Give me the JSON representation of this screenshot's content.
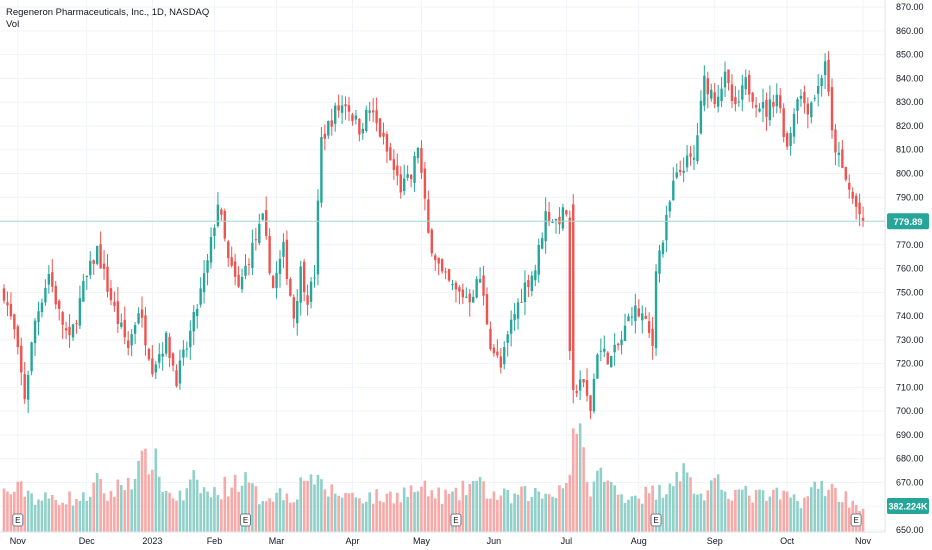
{
  "legend": {
    "title": "Regeneron Pharmaceuticals, Inc., 1D, NASDAQ",
    "volume_label": "Vol"
  },
  "colors": {
    "up": "#26a69a",
    "down": "#ef5350",
    "up_volume": "#91d0c9",
    "down_volume": "#f7a9a7",
    "grid": "#f0f3fa",
    "last_price": "#26a69a",
    "volume_tag": "#26a69a"
  },
  "chart_data": {
    "type": "candlestick",
    "symbol": "Regeneron Pharmaceuticals, Inc.",
    "interval": "1D",
    "exchange": "NASDAQ",
    "y_axis": {
      "ticks": [
        "870.00",
        "860.00",
        "850.00",
        "840.00",
        "830.00",
        "820.00",
        "810.00",
        "800.00",
        "790.00",
        "780.00",
        "770.00",
        "760.00",
        "750.00",
        "740.00",
        "730.00",
        "720.00",
        "710.00",
        "700.00",
        "690.00",
        "680.00",
        "670.00",
        "660.00",
        "650.00"
      ],
      "range": [
        650,
        873
      ]
    },
    "x_axis": {
      "labels": [
        "Nov",
        "Dec",
        "2023",
        "Feb",
        "Mar",
        "Apr",
        "May",
        "Jun",
        "Jul",
        "Aug",
        "Sep",
        "Oct",
        "Nov"
      ],
      "label_index": [
        4,
        24,
        43,
        61,
        79,
        101,
        121,
        142,
        163,
        184,
        206,
        227,
        249
      ]
    },
    "last_price": {
      "value": 779.89,
      "label": "779.89"
    },
    "last_volume": {
      "value": 382224,
      "label": "382.224K"
    },
    "earnings_markers": [
      4,
      70,
      131,
      189,
      247
    ],
    "anchors": [
      [
        0,
        750
      ],
      [
        3,
        733
      ],
      [
        6,
        706
      ],
      [
        9,
        738
      ],
      [
        13,
        758
      ],
      [
        16,
        741
      ],
      [
        19,
        729
      ],
      [
        23,
        752
      ],
      [
        27,
        768
      ],
      [
        30,
        752
      ],
      [
        33,
        738
      ],
      [
        36,
        727
      ],
      [
        39,
        743
      ],
      [
        43,
        719
      ],
      [
        47,
        730
      ],
      [
        50,
        714
      ],
      [
        53,
        727
      ],
      [
        56,
        744
      ],
      [
        59,
        762
      ],
      [
        62,
        788
      ],
      [
        65,
        763
      ],
      [
        68,
        751
      ],
      [
        71,
        765
      ],
      [
        75,
        780
      ],
      [
        78,
        752
      ],
      [
        81,
        768
      ],
      [
        84,
        740
      ],
      [
        86,
        759
      ],
      [
        88,
        748
      ],
      [
        89,
        752
      ],
      [
        90,
        758
      ],
      [
        92,
        814
      ],
      [
        96,
        826
      ],
      [
        99,
        830
      ],
      [
        103,
        819
      ],
      [
        106,
        827
      ],
      [
        109,
        817
      ],
      [
        112,
        805
      ],
      [
        115,
        794
      ],
      [
        118,
        798
      ],
      [
        120,
        812
      ],
      [
        123,
        774
      ],
      [
        127,
        757
      ],
      [
        131,
        750
      ],
      [
        135,
        748
      ],
      [
        138,
        756
      ],
      [
        141,
        729
      ],
      [
        144,
        718
      ],
      [
        147,
        737
      ],
      [
        151,
        753
      ],
      [
        154,
        760
      ],
      [
        157,
        783
      ],
      [
        160,
        780
      ],
      [
        163,
        784
      ],
      [
        164,
        722
      ],
      [
        165,
        706
      ],
      [
        167,
        714
      ],
      [
        170,
        701
      ],
      [
        172,
        726
      ],
      [
        176,
        722
      ],
      [
        179,
        730
      ],
      [
        182,
        743
      ],
      [
        185,
        740
      ],
      [
        188,
        728
      ],
      [
        189,
        762
      ],
      [
        191,
        772
      ],
      [
        194,
        795
      ],
      [
        197,
        804
      ],
      [
        200,
        806
      ],
      [
        203,
        839
      ],
      [
        206,
        832
      ],
      [
        209,
        840
      ],
      [
        212,
        826
      ],
      [
        215,
        838
      ],
      [
        218,
        831
      ],
      [
        221,
        826
      ],
      [
        224,
        834
      ],
      [
        227,
        811
      ],
      [
        230,
        834
      ],
      [
        233,
        828
      ],
      [
        236,
        836
      ],
      [
        238,
        848
      ],
      [
        240,
        816
      ],
      [
        243,
        801
      ],
      [
        246,
        789
      ],
      [
        249,
        779.89
      ]
    ],
    "volume_anchors": [
      [
        0,
        640
      ],
      [
        6,
        700
      ],
      [
        10,
        530
      ],
      [
        16,
        560
      ],
      [
        23,
        540
      ],
      [
        27,
        800
      ],
      [
        30,
        590
      ],
      [
        36,
        860
      ],
      [
        43,
        1250
      ],
      [
        47,
        640
      ],
      [
        52,
        560
      ],
      [
        55,
        820
      ],
      [
        60,
        600
      ],
      [
        64,
        740
      ],
      [
        69,
        880
      ],
      [
        74,
        560
      ],
      [
        79,
        640
      ],
      [
        84,
        600
      ],
      [
        89,
        1050
      ],
      [
        90,
        780
      ],
      [
        96,
        640
      ],
      [
        103,
        590
      ],
      [
        110,
        560
      ],
      [
        115,
        640
      ],
      [
        121,
        700
      ],
      [
        125,
        610
      ],
      [
        131,
        580
      ],
      [
        136,
        820
      ],
      [
        142,
        600
      ],
      [
        147,
        560
      ],
      [
        152,
        640
      ],
      [
        157,
        610
      ],
      [
        163,
        800
      ],
      [
        164,
        1150
      ],
      [
        166,
        1950
      ],
      [
        169,
        720
      ],
      [
        173,
        940
      ],
      [
        178,
        620
      ],
      [
        185,
        610
      ],
      [
        190,
        660
      ],
      [
        196,
        1050
      ],
      [
        202,
        580
      ],
      [
        207,
        760
      ],
      [
        213,
        640
      ],
      [
        219,
        580
      ],
      [
        226,
        590
      ],
      [
        231,
        520
      ],
      [
        237,
        780
      ],
      [
        243,
        600
      ],
      [
        249,
        382
      ]
    ],
    "volume_max_k": 2000,
    "candle_count": 250
  }
}
